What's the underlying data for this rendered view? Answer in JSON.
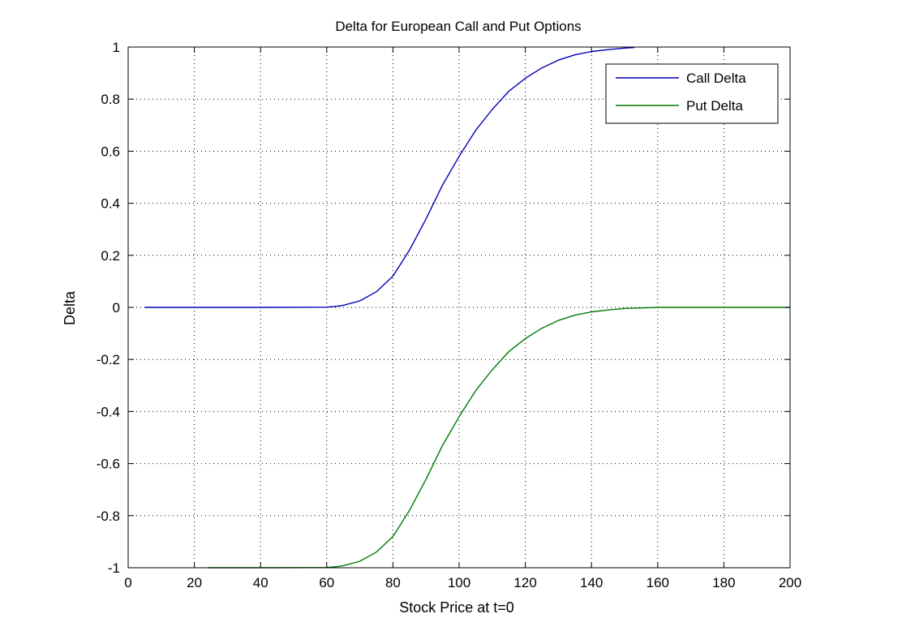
{
  "chart_data": {
    "type": "line",
    "title": "Delta for European Call and Put Options",
    "xlabel": "Stock Price at t=0",
    "ylabel": "Delta",
    "xlim": [
      0,
      200
    ],
    "ylim": [
      -1,
      1
    ],
    "xticks": [
      0,
      20,
      40,
      60,
      80,
      100,
      120,
      140,
      160,
      180,
      200
    ],
    "yticks": [
      -1,
      -0.8,
      -0.6,
      -0.4,
      -0.2,
      0,
      0.2,
      0.4,
      0.6,
      0.8,
      1
    ],
    "xtick_labels": [
      "0",
      "20",
      "40",
      "60",
      "80",
      "100",
      "120",
      "140",
      "160",
      "180",
      "200"
    ],
    "ytick_labels": [
      "-1",
      "-0.8",
      "-0.6",
      "-0.4",
      "-0.2",
      "0",
      "0.2",
      "0.4",
      "0.6",
      "0.8",
      "1"
    ],
    "grid": true,
    "legend_position": "top-right",
    "series": [
      {
        "name": "Call Delta",
        "color": "#0000b8",
        "x": [
          5,
          20,
          40,
          60,
          63,
          65,
          70,
          75,
          80,
          85,
          90,
          95,
          100,
          105,
          110,
          115,
          120,
          125,
          130,
          135,
          140,
          145,
          150,
          153
        ],
        "y": [
          0,
          0,
          0,
          0.001,
          0.004,
          0.008,
          0.025,
          0.06,
          0.12,
          0.22,
          0.34,
          0.47,
          0.58,
          0.68,
          0.76,
          0.83,
          0.88,
          0.92,
          0.95,
          0.97,
          0.983,
          0.99,
          0.996,
          0.998
        ]
      },
      {
        "name": "Put Delta",
        "color": "#007a00",
        "x": [
          24,
          40,
          60,
          63,
          65,
          70,
          75,
          80,
          85,
          90,
          95,
          100,
          105,
          110,
          115,
          120,
          125,
          130,
          135,
          140,
          145,
          150,
          160,
          180,
          200
        ],
        "y": [
          -1,
          -1,
          -0.999,
          -0.996,
          -0.992,
          -0.975,
          -0.94,
          -0.88,
          -0.78,
          -0.66,
          -0.53,
          -0.42,
          -0.32,
          -0.24,
          -0.17,
          -0.12,
          -0.08,
          -0.05,
          -0.03,
          -0.017,
          -0.01,
          -0.004,
          0,
          0,
          0
        ]
      }
    ]
  }
}
